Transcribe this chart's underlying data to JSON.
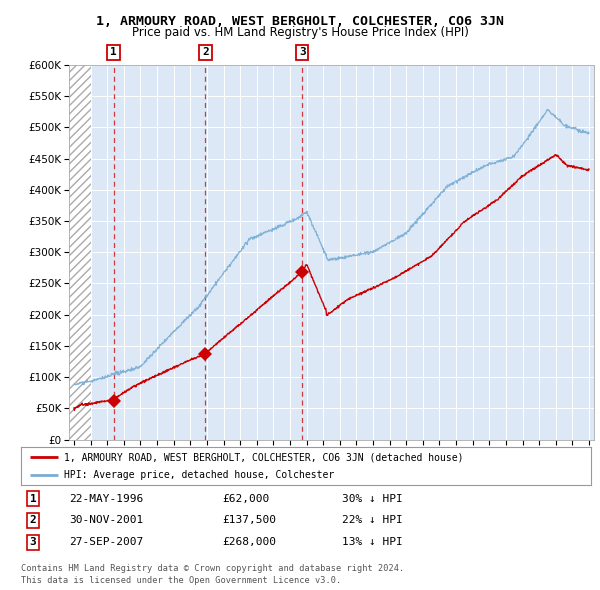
{
  "title": "1, ARMOURY ROAD, WEST BERGHOLT, COLCHESTER, CO6 3JN",
  "subtitle": "Price paid vs. HM Land Registry's House Price Index (HPI)",
  "ytick_vals": [
    0,
    50000,
    100000,
    150000,
    200000,
    250000,
    300000,
    350000,
    400000,
    450000,
    500000,
    550000,
    600000
  ],
  "xlim": [
    1993.7,
    2025.3
  ],
  "ylim": [
    0,
    600000
  ],
  "hpi_color": "#7aadd4",
  "price_color": "#cc0000",
  "sale_dates": [
    1996.386,
    2001.913,
    2007.742
  ],
  "sale_prices": [
    62000,
    137500,
    268000
  ],
  "sale_labels": [
    "1",
    "2",
    "3"
  ],
  "legend_text_1": "1, ARMOURY ROAD, WEST BERGHOLT, COLCHESTER, CO6 3JN (detached house)",
  "legend_text_2": "HPI: Average price, detached house, Colchester",
  "table_rows": [
    [
      "1",
      "22-MAY-1996",
      "£62,000",
      "30% ↓ HPI"
    ],
    [
      "2",
      "30-NOV-2001",
      "£137,500",
      "22% ↓ HPI"
    ],
    [
      "3",
      "27-SEP-2007",
      "£268,000",
      "13% ↓ HPI"
    ]
  ],
  "footer": "Contains HM Land Registry data © Crown copyright and database right 2024.\nThis data is licensed under the Open Government Licence v3.0.",
  "background_color": "#ffffff",
  "plot_bg_color": "#dce8f5",
  "grid_color": "#ffffff"
}
